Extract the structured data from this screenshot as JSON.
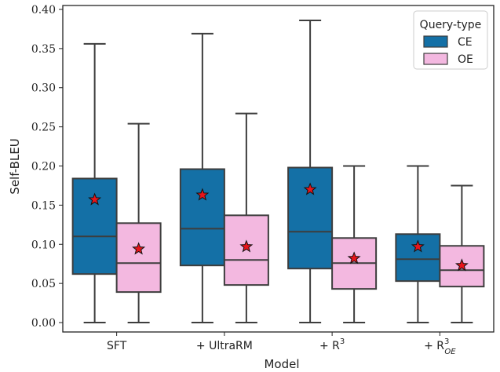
{
  "chart_data": {
    "type": "box",
    "xlabel": "Model",
    "ylabel": "Self-BLEU",
    "ylim": [
      -0.012,
      0.405
    ],
    "yticks": [
      "0.00",
      "0.05",
      "0.10",
      "0.15",
      "0.20",
      "0.25",
      "0.30",
      "0.35",
      "0.40"
    ],
    "grid": false,
    "legend": {
      "title": "Query-type",
      "placement": "top-right"
    },
    "categories": [
      {
        "base": "SFT",
        "sup": "",
        "sub": ""
      },
      {
        "base": "+ UltraRM",
        "sup": "",
        "sub": ""
      },
      {
        "base": "+ R",
        "sup": "3",
        "sub": ""
      },
      {
        "base": "+ R",
        "sup": "3",
        "sub": "OE"
      }
    ],
    "series": [
      {
        "name": "CE",
        "color": "#1470a6",
        "boxes": [
          {
            "whislo": 0.0,
            "q1": 0.062,
            "med": 0.11,
            "q3": 0.184,
            "whishi": 0.356,
            "mean": 0.157
          },
          {
            "whislo": 0.0,
            "q1": 0.073,
            "med": 0.12,
            "q3": 0.196,
            "whishi": 0.369,
            "mean": 0.163
          },
          {
            "whislo": 0.0,
            "q1": 0.069,
            "med": 0.116,
            "q3": 0.198,
            "whishi": 0.386,
            "mean": 0.17
          },
          {
            "whislo": 0.0,
            "q1": 0.053,
            "med": 0.081,
            "q3": 0.113,
            "whishi": 0.2,
            "mean": 0.097
          }
        ]
      },
      {
        "name": "OE",
        "color": "#f3b8e0",
        "boxes": [
          {
            "whislo": 0.0,
            "q1": 0.039,
            "med": 0.076,
            "q3": 0.127,
            "whishi": 0.254,
            "mean": 0.094
          },
          {
            "whislo": 0.0,
            "q1": 0.048,
            "med": 0.08,
            "q3": 0.137,
            "whishi": 0.267,
            "mean": 0.097
          },
          {
            "whislo": 0.0,
            "q1": 0.043,
            "med": 0.076,
            "q3": 0.108,
            "whishi": 0.2,
            "mean": 0.082
          },
          {
            "whislo": 0.0,
            "q1": 0.046,
            "med": 0.067,
            "q3": 0.098,
            "whishi": 0.175,
            "mean": 0.073
          }
        ]
      }
    ],
    "mean_marker": {
      "shape": "star",
      "color": "#e8151b"
    },
    "line_color": "#3d3d3d"
  }
}
